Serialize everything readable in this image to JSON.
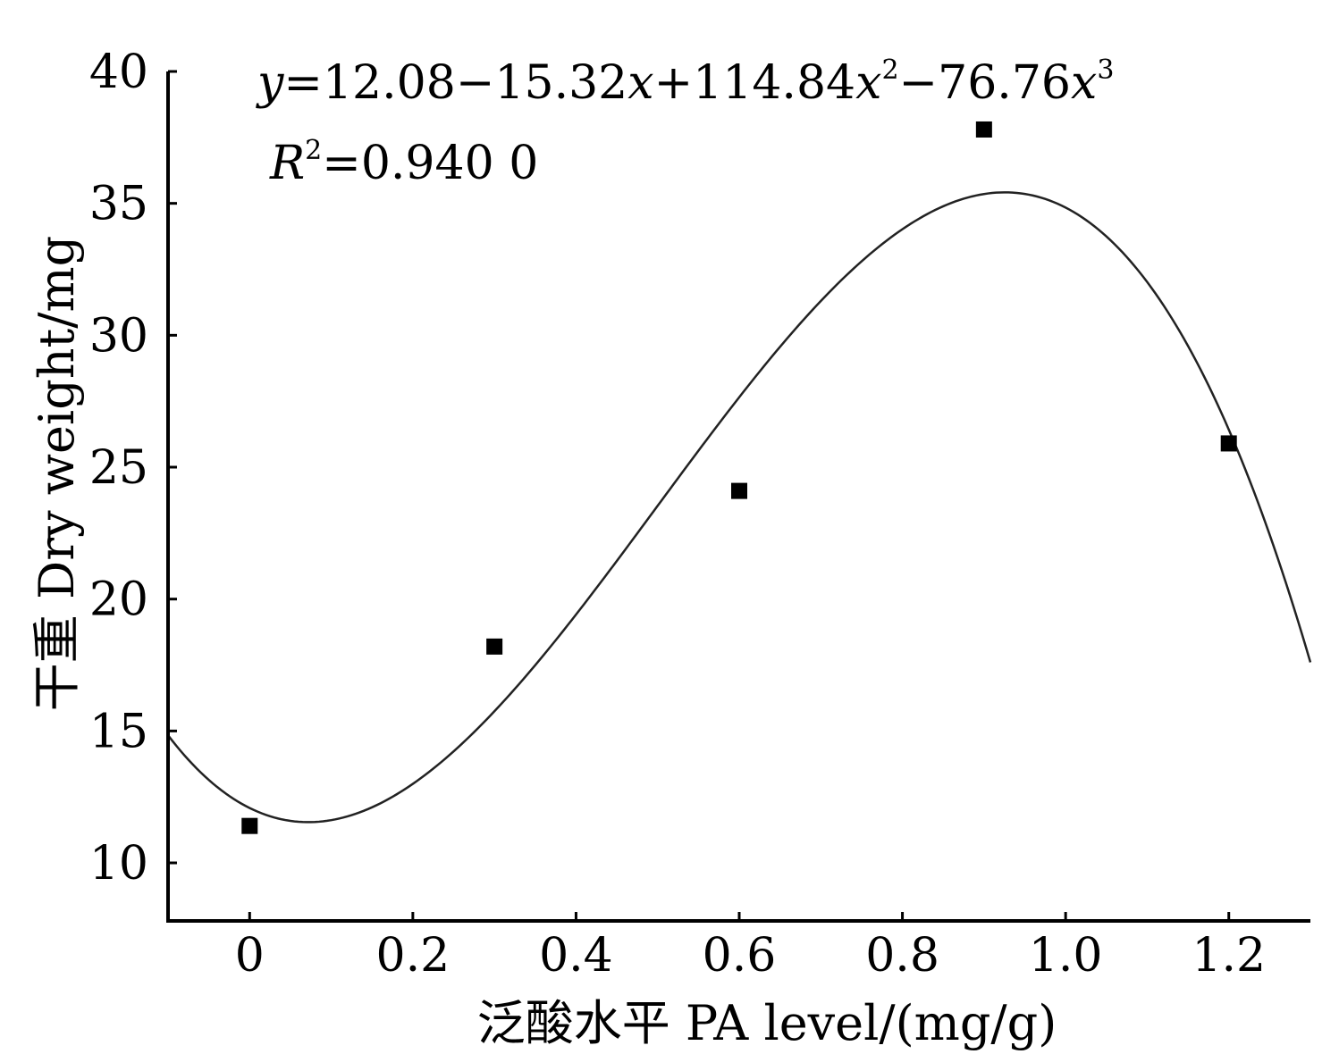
{
  "chart_data": {
    "type": "scatter",
    "xlabel": "泛酸水平 PA level/(mg/g)",
    "ylabel": "干重 Dry weight/mg",
    "x_ticks": [
      "0",
      "0.2",
      "0.4",
      "0.6",
      "0.8",
      "1.0",
      "1.2"
    ],
    "y_ticks": [
      "10",
      "15",
      "20",
      "25",
      "30",
      "35",
      "40"
    ],
    "xlim": [
      -0.1,
      1.3
    ],
    "ylim": [
      7.8,
      40
    ],
    "grid": false,
    "points": [
      {
        "x": 0,
        "y": 11.4
      },
      {
        "x": 0.3,
        "y": 18.2
      },
      {
        "x": 0.6,
        "y": 24.1
      },
      {
        "x": 0.9,
        "y": 37.8
      },
      {
        "x": 1.2,
        "y": 25.9
      }
    ],
    "fit": {
      "type": "cubic",
      "coefficients": [
        12.08,
        -15.32,
        114.84,
        -76.76
      ],
      "equation_parts": [
        "y",
        "=12.08−15.32",
        "x",
        "+114.84",
        "x",
        "2",
        "−76.76",
        "x",
        "3"
      ],
      "r2_parts": [
        "R",
        "2",
        "=0.940 0"
      ]
    },
    "colors": {
      "points": "#000000",
      "curve": "#222222",
      "axis": "#000000"
    }
  }
}
